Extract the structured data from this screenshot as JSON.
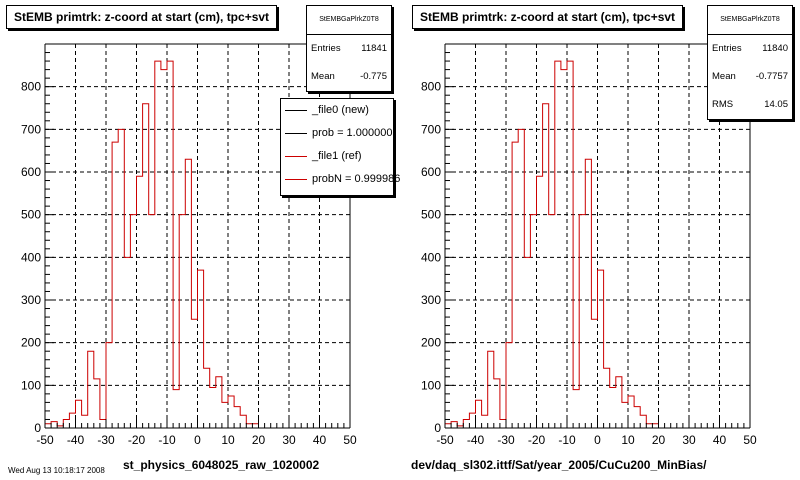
{
  "footer": "Wed Aug 13 10:18:17 2008",
  "chart_data": [
    {
      "type": "histogram",
      "title": "StEMB primtrk: z-coord at start (cm), tpc+svt",
      "xlabel": "st_physics_6048025_raw_1020002",
      "ylabel": "",
      "xlim": [
        -50,
        50
      ],
      "ylim": [
        0,
        900
      ],
      "bin_width": 2,
      "x_ticks": [
        "-50",
        "-40",
        "-30",
        "-20",
        "-10",
        "0",
        "10",
        "20",
        "30",
        "40",
        "50"
      ],
      "y_ticks": [
        "0",
        "100",
        "200",
        "300",
        "400",
        "500",
        "600",
        "700",
        "800"
      ],
      "grid": true,
      "stats": {
        "name": "StEMBGaPlrkZ0T8",
        "rows": [
          {
            "label": "Entries",
            "value": "11841"
          },
          {
            "label": "Mean",
            "value": "-0.775"
          }
        ]
      },
      "legend": {
        "placement": "top-right",
        "entries": [
          {
            "label": "_file0 (new)",
            "color": "#000000"
          },
          {
            "label": "prob = 1.000000",
            "color": "#000000"
          },
          {
            "label": "_file1 (ref)",
            "color": "#cc0000"
          },
          {
            "label": "probN = 0.999986",
            "color": "#cc0000"
          }
        ]
      },
      "series": [
        {
          "name": "_file1 (ref)",
          "color": "#cc0000",
          "bin_edges_start": -50,
          "values": [
            10,
            15,
            5,
            20,
            35,
            65,
            30,
            180,
            115,
            20,
            200,
            670,
            700,
            400,
            500,
            590,
            760,
            500,
            860,
            840,
            860,
            90,
            500,
            630,
            255,
            370,
            140,
            95,
            120,
            60,
            75,
            50,
            30,
            10,
            10
          ]
        }
      ]
    },
    {
      "type": "histogram",
      "title": "StEMB primtrk: z-coord at start (cm), tpc+svt",
      "xlabel": "dev/daq_sl302.ittf/Sat/year_2005/CuCu200_MinBias/",
      "ylabel": "",
      "xlim": [
        -50,
        50
      ],
      "ylim": [
        0,
        900
      ],
      "bin_width": 2,
      "x_ticks": [
        "-50",
        "-40",
        "-30",
        "-20",
        "-10",
        "0",
        "10",
        "20",
        "30",
        "40",
        "50"
      ],
      "y_ticks": [
        "0",
        "100",
        "200",
        "300",
        "400",
        "500",
        "600",
        "700",
        "800"
      ],
      "grid": true,
      "stats": {
        "name": "StEMBGaPlrkZ0T8",
        "rows": [
          {
            "label": "Entries",
            "value": "11840"
          },
          {
            "label": "Mean",
            "value": "-0.7757"
          },
          {
            "label": "RMS",
            "value": "14.05"
          }
        ]
      },
      "series": [
        {
          "name": "",
          "color": "#cc0000",
          "bin_edges_start": -50,
          "values": [
            10,
            15,
            5,
            20,
            35,
            65,
            30,
            180,
            115,
            20,
            200,
            670,
            700,
            400,
            500,
            590,
            760,
            500,
            860,
            840,
            860,
            90,
            500,
            630,
            255,
            370,
            140,
            95,
            120,
            60,
            75,
            50,
            30,
            10,
            10
          ]
        }
      ]
    }
  ]
}
